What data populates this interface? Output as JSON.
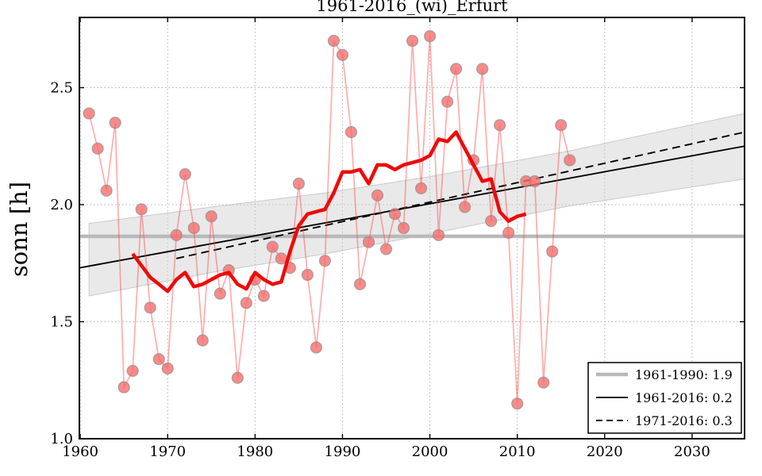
{
  "figure": {
    "title": "1961-2016_(wi)_Erfurt",
    "ylabel": "sonn [h]"
  },
  "chart_data": {
    "type": "line",
    "title": "1961-2016_(wi)_Erfurt",
    "xlabel": "",
    "ylabel": "sonn [h]",
    "xlim": [
      1959.9,
      2036
    ],
    "ylim": [
      1.0,
      2.8
    ],
    "xticks": [
      1960,
      1970,
      1980,
      1990,
      2000,
      2010,
      2020,
      2030
    ],
    "yticks": [
      1.0,
      1.5,
      2.0,
      2.5
    ],
    "grid": true,
    "legend_position": "lower right",
    "series": [
      {
        "name": "annual-values",
        "style": "scatter-with-line",
        "x": [
          1961,
          1962,
          1963,
          1964,
          1965,
          1966,
          1967,
          1968,
          1969,
          1970,
          1971,
          1972,
          1973,
          1974,
          1975,
          1976,
          1977,
          1978,
          1979,
          1980,
          1981,
          1982,
          1983,
          1984,
          1985,
          1986,
          1987,
          1988,
          1989,
          1990,
          1991,
          1992,
          1993,
          1994,
          1995,
          1996,
          1997,
          1998,
          1999,
          2000,
          2001,
          2002,
          2003,
          2004,
          2005,
          2006,
          2007,
          2008,
          2009,
          2010,
          2011,
          2012,
          2013,
          2014,
          2015,
          2016
        ],
        "values": [
          2.39,
          2.24,
          2.06,
          2.35,
          1.22,
          1.29,
          1.98,
          1.56,
          1.34,
          1.3,
          1.87,
          2.13,
          1.9,
          1.42,
          1.95,
          1.62,
          1.72,
          1.26,
          1.58,
          1.68,
          1.61,
          1.82,
          1.77,
          1.73,
          2.09,
          1.7,
          1.39,
          1.76,
          2.7,
          2.64,
          2.31,
          1.66,
          1.84,
          2.04,
          1.81,
          1.96,
          1.9,
          2.7,
          2.07,
          2.72,
          1.87,
          2.44,
          2.58,
          1.99,
          2.19,
          2.58,
          1.93,
          2.34,
          1.88,
          1.15,
          2.1,
          2.1,
          1.24,
          1.8,
          2.34,
          2.19
        ]
      },
      {
        "name": "smoothed-values",
        "style": "thick-line",
        "x": [
          1966,
          1967,
          1968,
          1969,
          1970,
          1971,
          1972,
          1973,
          1974,
          1975,
          1976,
          1977,
          1978,
          1979,
          1980,
          1981,
          1982,
          1983,
          1984,
          1985,
          1986,
          1987,
          1988,
          1989,
          1990,
          1991,
          1992,
          1993,
          1994,
          1995,
          1996,
          1997,
          1998,
          1999,
          2000,
          2001,
          2002,
          2003,
          2004,
          2005,
          2006,
          2007,
          2008,
          2009,
          2010,
          2011
        ],
        "values": [
          1.79,
          1.74,
          1.69,
          1.66,
          1.63,
          1.68,
          1.71,
          1.65,
          1.66,
          1.68,
          1.7,
          1.71,
          1.66,
          1.64,
          1.71,
          1.68,
          1.66,
          1.67,
          1.8,
          1.91,
          1.96,
          1.97,
          1.98,
          2.05,
          2.14,
          2.14,
          2.15,
          2.09,
          2.17,
          2.17,
          2.15,
          2.17,
          2.18,
          2.19,
          2.21,
          2.28,
          2.27,
          2.31,
          2.24,
          2.17,
          2.1,
          2.11,
          1.97,
          1.93,
          1.95,
          1.96
        ]
      },
      {
        "name": "mean-1961-1990",
        "style": "thick-gray-horizontal",
        "value": 1.865,
        "x_span": [
          1959.9,
          2036
        ]
      },
      {
        "name": "trend-1961-2016",
        "style": "solid-black",
        "x": [
          1959.9,
          2036
        ],
        "values": [
          1.73,
          2.25
        ]
      },
      {
        "name": "trend-1971-2016",
        "style": "dashed-black",
        "x": [
          1971,
          2036
        ],
        "values": [
          1.77,
          2.31
        ]
      },
      {
        "name": "confidence-band",
        "style": "gray-band",
        "x": [
          1961,
          1975,
          1988,
          2000,
          2016,
          2036
        ],
        "top": [
          1.92,
          1.99,
          2.05,
          2.12,
          2.23,
          2.39
        ],
        "bottom": [
          1.61,
          1.71,
          1.79,
          1.875,
          1.995,
          2.11
        ]
      }
    ],
    "legend_entries": [
      {
        "label": "1961-1990: 1.9",
        "sample": "thick-gray"
      },
      {
        "label": "1961-2016: 0.2",
        "sample": "solid-black"
      },
      {
        "label": "1971-2016: 0.3",
        "sample": "dashed-black"
      }
    ]
  },
  "colors": {
    "annual_line": "#ff4646",
    "annual_marker_fill": "#f56e6e",
    "annual_marker_edge": "#8c8c8c",
    "smoothed_line": "#ee0a0a",
    "mean_line": "#b9b9b9",
    "trend_line": "#000000",
    "band_fill": "#cfcfcf",
    "band_edge": "#a8a8a8",
    "grid": "#b0b0b0",
    "frame": "#000000",
    "legend_bg": "#ffffff"
  }
}
